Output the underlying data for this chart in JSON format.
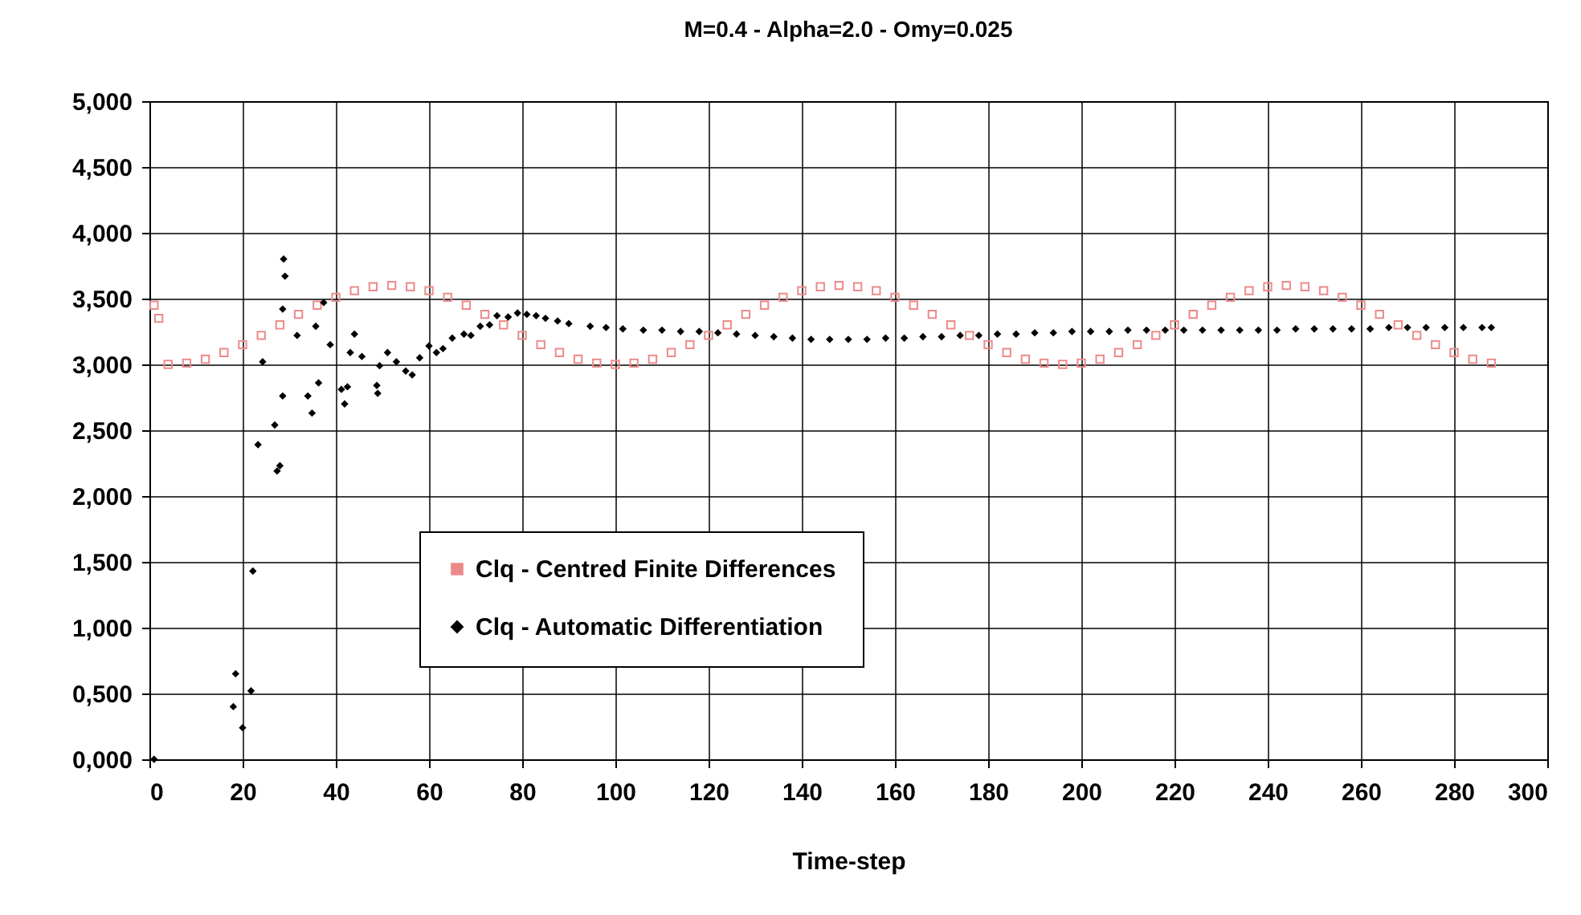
{
  "chart_data": {
    "type": "scatter",
    "title": "M=0.4  -  Alpha=2.0  -  Omy=0.025",
    "xlabel": "Time-step",
    "xlim": [
      0,
      300
    ],
    "xticks": [
      0,
      20,
      40,
      60,
      80,
      100,
      120,
      140,
      160,
      180,
      200,
      220,
      240,
      260,
      280,
      300
    ],
    "ylim": [
      0,
      5
    ],
    "yticks": [
      {
        "value": 0,
        "label": "0,000"
      },
      {
        "value": 0.5,
        "label": "0,500"
      },
      {
        "value": 1,
        "label": "1,000"
      },
      {
        "value": 1.5,
        "label": "1,500"
      },
      {
        "value": 2,
        "label": "2,000"
      },
      {
        "value": 2.5,
        "label": "2,500"
      },
      {
        "value": 3,
        "label": "3,000"
      },
      {
        "value": 3.5,
        "label": "3,500"
      },
      {
        "value": 4,
        "label": "4,000"
      },
      {
        "value": 4.5,
        "label": "4,500"
      },
      {
        "value": 5,
        "label": "5,000"
      }
    ],
    "grid": true,
    "legend": "bottom",
    "series": [
      {
        "name": "Clq - Centred Finite Differences",
        "color": "#ec8a8a",
        "marker": "square",
        "x": [
          1,
          2,
          4,
          8,
          12,
          16,
          20,
          24,
          28,
          32,
          36,
          40,
          44,
          48,
          52,
          56,
          60,
          64,
          68,
          72,
          76,
          80,
          84,
          88,
          92,
          96,
          100,
          104,
          108,
          112,
          116,
          120,
          124,
          128,
          132,
          136,
          140,
          144,
          148,
          152,
          156,
          160,
          164,
          168,
          172,
          176,
          180,
          184,
          188,
          192,
          196,
          200,
          204,
          208,
          212,
          216,
          220,
          224,
          228,
          232,
          236,
          240,
          244,
          248,
          252,
          256,
          260,
          264,
          268,
          272,
          276,
          280,
          284,
          288
        ],
        "values": [
          3.45,
          3.35,
          3.0,
          3.01,
          3.04,
          3.09,
          3.15,
          3.22,
          3.3,
          3.38,
          3.45,
          3.51,
          3.56,
          3.59,
          3.6,
          3.59,
          3.56,
          3.51,
          3.45,
          3.38,
          3.3,
          3.22,
          3.15,
          3.09,
          3.04,
          3.01,
          3.0,
          3.01,
          3.04,
          3.09,
          3.15,
          3.22,
          3.3,
          3.38,
          3.45,
          3.51,
          3.56,
          3.59,
          3.6,
          3.59,
          3.56,
          3.51,
          3.45,
          3.38,
          3.3,
          3.22,
          3.15,
          3.09,
          3.04,
          3.01,
          3.0,
          3.01,
          3.04,
          3.09,
          3.15,
          3.22,
          3.3,
          3.38,
          3.45,
          3.51,
          3.56,
          3.59,
          3.6,
          3.59,
          3.56,
          3.51,
          3.45,
          3.38,
          3.3,
          3.22,
          3.15,
          3.09,
          3.04,
          3.01
        ]
      },
      {
        "name": "Clq - Automatic Differentiation",
        "color": "#000000",
        "marker": "diamond",
        "x": [
          1,
          18,
          18.5,
          20,
          21.8,
          22.2,
          23.3,
          24.3,
          26.9,
          27.4,
          28,
          28.6,
          28.6,
          28.8,
          29.1,
          31.7,
          34,
          34.9,
          35.7,
          36.3,
          37.4,
          38.8,
          41.2,
          41.9,
          42.5,
          43.1,
          44,
          45.6,
          48.8,
          49,
          49.4,
          51.1,
          53,
          55,
          56.4,
          58,
          60,
          61.6,
          63,
          65,
          67.5,
          69,
          71,
          73,
          74.6,
          77,
          79,
          81,
          83,
          85,
          87.6,
          90,
          94.6,
          98,
          101.6,
          106,
          110,
          114,
          118,
          122,
          126,
          130,
          134,
          138,
          142,
          146,
          150,
          154,
          158,
          162,
          166,
          170,
          174,
          178,
          182,
          186,
          190,
          194,
          198,
          202,
          206,
          210,
          214,
          218,
          222,
          226,
          230,
          234,
          238,
          242,
          246,
          250,
          254,
          258,
          262,
          266,
          270,
          274,
          278,
          282,
          286,
          288
        ],
        "values": [
          0.0,
          0.4,
          0.65,
          0.24,
          0.52,
          1.43,
          2.39,
          3.02,
          2.54,
          2.19,
          2.23,
          2.76,
          3.42,
          3.8,
          3.67,
          3.22,
          2.76,
          2.63,
          3.29,
          2.86,
          3.47,
          3.15,
          2.81,
          2.7,
          2.83,
          3.09,
          3.23,
          3.06,
          2.84,
          2.78,
          2.99,
          3.09,
          3.02,
          2.95,
          2.92,
          3.05,
          3.14,
          3.09,
          3.12,
          3.2,
          3.23,
          3.22,
          3.29,
          3.3,
          3.37,
          3.36,
          3.39,
          3.38,
          3.37,
          3.35,
          3.33,
          3.31,
          3.29,
          3.28,
          3.27,
          3.26,
          3.26,
          3.25,
          3.25,
          3.24,
          3.23,
          3.22,
          3.21,
          3.2,
          3.19,
          3.19,
          3.19,
          3.19,
          3.2,
          3.2,
          3.21,
          3.21,
          3.22,
          3.22,
          3.23,
          3.23,
          3.24,
          3.24,
          3.25,
          3.25,
          3.25,
          3.26,
          3.26,
          3.26,
          3.26,
          3.26,
          3.26,
          3.26,
          3.26,
          3.26,
          3.27,
          3.27,
          3.27,
          3.27,
          3.27,
          3.28,
          3.28,
          3.28,
          3.28,
          3.28,
          3.28,
          3.28
        ]
      }
    ]
  }
}
